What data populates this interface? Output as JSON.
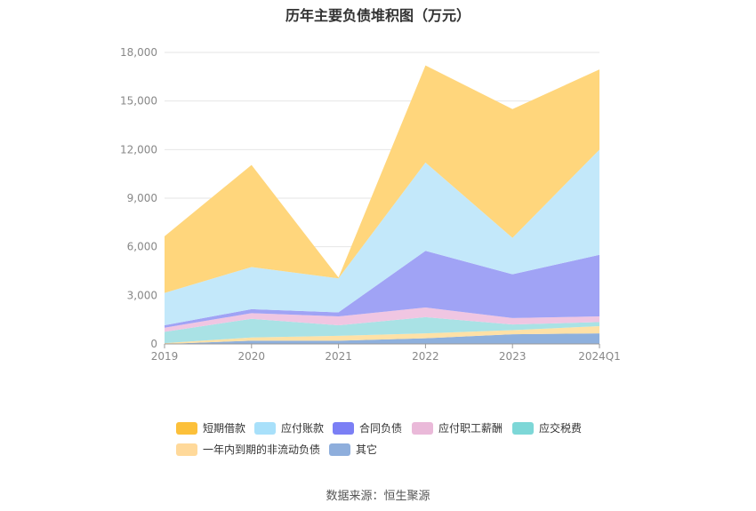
{
  "chart_data": {
    "type": "area",
    "stacked": true,
    "title": "历年主要负债堆积图（万元）",
    "categories": [
      "2019",
      "2020",
      "2021",
      "2022",
      "2023",
      "2024Q1"
    ],
    "ylim": [
      0,
      18000
    ],
    "yticks": [
      "0",
      "3,000",
      "6,000",
      "9,000",
      "12,000",
      "15,000",
      "18,000"
    ],
    "grid": true,
    "legend_position": "bottom",
    "series": [
      {
        "name": "其它",
        "color": "#8eb0dd",
        "values": [
          0,
          200,
          200,
          350,
          600,
          650
        ]
      },
      {
        "name": "一年内到期的非流动负债",
        "color": "#ffe1a6",
        "values": [
          50,
          200,
          300,
          300,
          250,
          450
        ]
      },
      {
        "name": "应交税费",
        "color": "#a9e2e5",
        "values": [
          700,
          1150,
          650,
          1000,
          350,
          250
        ]
      },
      {
        "name": "应付职工薪酬",
        "color": "#f0c6e2",
        "values": [
          250,
          350,
          550,
          600,
          400,
          350
        ]
      },
      {
        "name": "合同负债",
        "color": "#a0a3f5",
        "values": [
          150,
          250,
          250,
          3500,
          2700,
          3800
        ]
      },
      {
        "name": "应付账款",
        "color": "#c3e8fa",
        "values": [
          2000,
          2600,
          2100,
          5450,
          2250,
          6500
        ]
      },
      {
        "name": "短期借款",
        "color": "#ffd67c",
        "values": [
          3500,
          6300,
          50,
          6000,
          7950,
          4950
        ]
      }
    ]
  },
  "legend": {
    "items": [
      {
        "label": "短期借款",
        "color": "#fcc03a"
      },
      {
        "label": "应付账款",
        "color": "#a8e0fa"
      },
      {
        "label": "合同负债",
        "color": "#7b7ff5"
      },
      {
        "label": "应付职工薪酬",
        "color": "#eab9d9"
      },
      {
        "label": "应交税费",
        "color": "#7dd7d7"
      },
      {
        "label": "一年内到期的非流动负债",
        "color": "#ffd99a"
      },
      {
        "label": "其它",
        "color": "#8eaedc"
      }
    ]
  },
  "footer": {
    "source": "数据来源：恒生聚源"
  }
}
